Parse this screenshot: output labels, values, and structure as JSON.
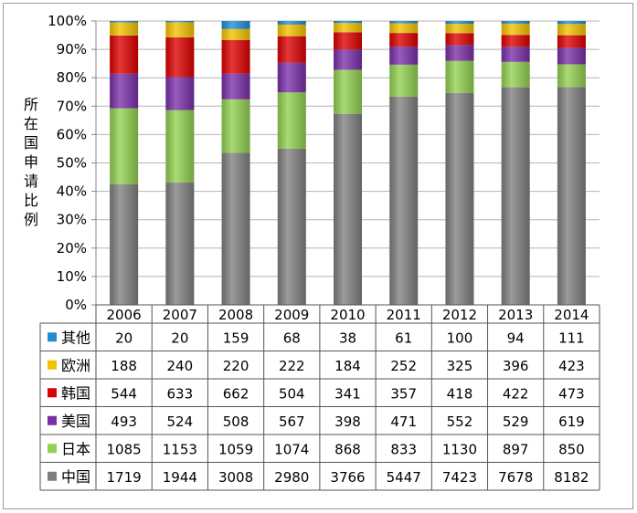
{
  "chart_data": {
    "type": "bar",
    "stacked": "percent",
    "ylabel": "所在国申请比例",
    "ylim": [
      0,
      100
    ],
    "yticks": [
      "0%",
      "10%",
      "20%",
      "30%",
      "40%",
      "50%",
      "60%",
      "70%",
      "80%",
      "90%",
      "100%"
    ],
    "categories": [
      "2006",
      "2007",
      "2008",
      "2009",
      "2010",
      "2011",
      "2012",
      "2013",
      "2014"
    ],
    "series": [
      {
        "name": "其他",
        "color": "#1f8fd0",
        "values": [
          20,
          20,
          159,
          68,
          38,
          61,
          100,
          94,
          111
        ]
      },
      {
        "name": "欧洲",
        "color": "#f2c200",
        "values": [
          188,
          240,
          220,
          222,
          184,
          252,
          325,
          396,
          423
        ]
      },
      {
        "name": "韩国",
        "color": "#dd0000",
        "values": [
          544,
          633,
          662,
          504,
          341,
          357,
          418,
          422,
          473
        ]
      },
      {
        "name": "美国",
        "color": "#7a2fa8",
        "values": [
          493,
          524,
          508,
          567,
          398,
          471,
          552,
          529,
          619
        ]
      },
      {
        "name": "日本",
        "color": "#92d050",
        "values": [
          1085,
          1153,
          1059,
          1074,
          868,
          833,
          1130,
          897,
          850
        ]
      },
      {
        "name": "中国",
        "color": "#7f7f7f",
        "values": [
          1719,
          1944,
          3008,
          2980,
          3766,
          5447,
          7423,
          7678,
          8182
        ]
      }
    ],
    "grid": true,
    "legend": "data-table-left"
  }
}
